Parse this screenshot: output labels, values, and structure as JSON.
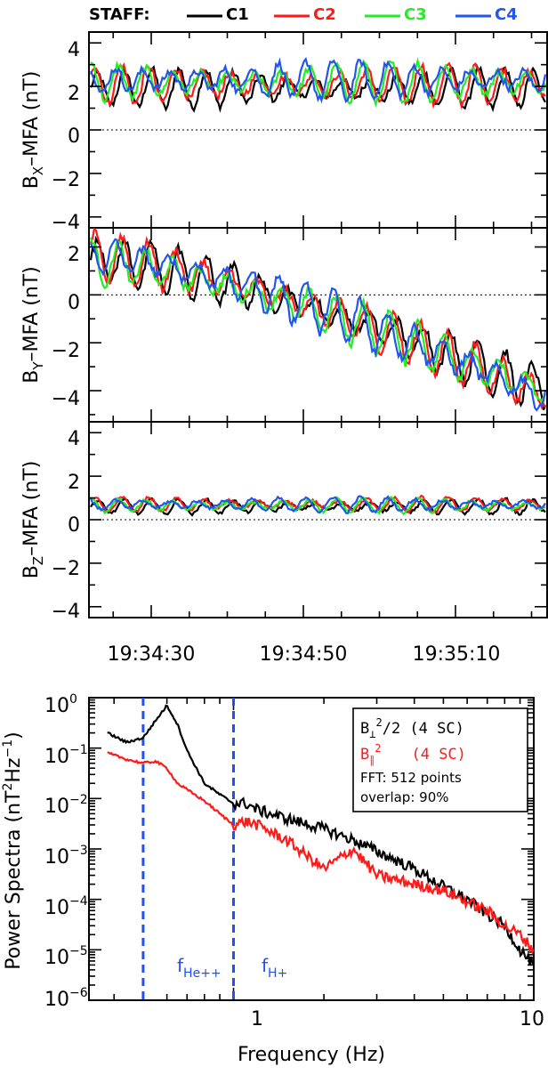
{
  "legend": {
    "prefix": "STAFF:",
    "items": [
      {
        "label": "C1",
        "color": "#000000"
      },
      {
        "label": "C2",
        "color": "#ff1a1a"
      },
      {
        "label": "C3",
        "color": "#22ee22"
      },
      {
        "label": "C4",
        "color": "#2255ee"
      }
    ]
  },
  "time_ticks": [
    "19:34:30",
    "19:34:50",
    "19:35:10"
  ],
  "panels": [
    {
      "ylabel_main": "B",
      "ylabel_sub": "X",
      "ylabel_rest": "–MFA (nT)",
      "yticks": [
        "4",
        "2",
        "0",
        "−2",
        "−4"
      ]
    },
    {
      "ylabel_main": "B",
      "ylabel_sub": "Y",
      "ylabel_rest": "–MFA (nT)",
      "yticks": [
        "2",
        "0",
        "−2",
        "−4"
      ]
    },
    {
      "ylabel_main": "B",
      "ylabel_sub": "Z",
      "ylabel_rest": "–MFA (nT)",
      "yticks": [
        "4",
        "2",
        "0",
        "−2",
        "−4"
      ]
    }
  ],
  "spectrum": {
    "ylabel_main": "Power Spectra (nT",
    "ylabel_sup": "2",
    "ylabel_mid": "Hz",
    "ylabel_sup2": "−1",
    "ylabel_end": ")",
    "xlabel": "Frequency (Hz)",
    "xtick_labels": [
      "1",
      "10"
    ],
    "ytick_labels": [
      {
        "base": "10",
        "exp": "0"
      },
      {
        "base": "10",
        "exp": "−1"
      },
      {
        "base": "10",
        "exp": "−2"
      },
      {
        "base": "10",
        "exp": "−3"
      },
      {
        "base": "10",
        "exp": "−4"
      },
      {
        "base": "10",
        "exp": "−5"
      },
      {
        "base": "10",
        "exp": "−6"
      }
    ],
    "box": {
      "line1_main": "B",
      "line1_sub": "⊥",
      "line1_sup": "2",
      "line1_rest": "/2 (4 SC)",
      "line2_main": "B",
      "line2_sub": "∥",
      "line2_sup": "2",
      "line2_rest": "(4 SC)",
      "line3": "FFT: 512 points",
      "line4": "overlap: 90%"
    },
    "markers": [
      {
        "main": "f",
        "sub": "He++"
      },
      {
        "main": "f",
        "sub": "H+"
      }
    ]
  },
  "chart_data": [
    {
      "type": "line",
      "title": "",
      "xlabel": "",
      "ylabel": "Bx-MFA (nT)",
      "ylim": [
        -4.5,
        4.5
      ],
      "x_time_range": [
        "19:34:18",
        "19:35:22"
      ],
      "series": [
        {
          "name": "C1",
          "color": "#000000",
          "mean": 1.9,
          "amp": 0.9
        },
        {
          "name": "C2",
          "color": "#ff1a1a",
          "mean": 2.1,
          "amp": 0.9
        },
        {
          "name": "C3",
          "color": "#22ee22",
          "mean": 2.2,
          "amp": 0.9
        },
        {
          "name": "C4",
          "color": "#2255ee",
          "mean": 2.3,
          "amp": 0.9
        }
      ]
    },
    {
      "type": "line",
      "title": "",
      "xlabel": "",
      "ylabel": "By-MFA (nT)",
      "ylim": [
        -5.3,
        2.8
      ],
      "x_time_range": [
        "19:34:18",
        "19:35:22"
      ],
      "series": [
        {
          "name": "C1",
          "color": "#000000",
          "start": 1.5,
          "end": -4.0,
          "amp": 1.0
        },
        {
          "name": "C2",
          "color": "#ff1a1a",
          "start": 1.6,
          "end": -4.2,
          "amp": 1.0
        },
        {
          "name": "C3",
          "color": "#22ee22",
          "start": 1.4,
          "end": -4.1,
          "amp": 1.0
        },
        {
          "name": "C4",
          "color": "#2255ee",
          "start": 1.7,
          "end": -4.3,
          "amp": 1.0
        }
      ]
    },
    {
      "type": "line",
      "title": "",
      "xlabel": "",
      "ylabel": "Bz-MFA (nT)",
      "ylim": [
        -4.5,
        4.5
      ],
      "x_time_range": [
        "19:34:18",
        "19:35:22"
      ],
      "series": [
        {
          "name": "C1",
          "color": "#000000",
          "mean": 0.6,
          "amp": 0.35
        },
        {
          "name": "C2",
          "color": "#ff1a1a",
          "mean": 0.7,
          "amp": 0.35
        },
        {
          "name": "C3",
          "color": "#22ee22",
          "mean": 0.65,
          "amp": 0.35
        },
        {
          "name": "C4",
          "color": "#2255ee",
          "mean": 0.7,
          "amp": 0.35
        }
      ]
    },
    {
      "type": "line",
      "title": "",
      "xlabel": "Frequency (Hz)",
      "ylabel": "Power Spectra (nT^2 Hz^-1)",
      "x_scale": "log",
      "y_scale": "log",
      "xlim": [
        0.33,
        10
      ],
      "ylim": [
        1e-06,
        1
      ],
      "vlines": [
        {
          "label": "fHe++",
          "x": 0.5,
          "color": "#1f4fff"
        },
        {
          "label": "fH+",
          "x": 1.0,
          "color": "#1f4fff"
        }
      ],
      "series": [
        {
          "name": "B⊥²/2 (4 SC)",
          "color": "#000000",
          "x": [
            0.38,
            0.44,
            0.5,
            0.55,
            0.6,
            0.65,
            0.7,
            0.8,
            0.9,
            1.0,
            1.1,
            1.2,
            1.5,
            2.0,
            2.5,
            3.0,
            4.0,
            5.0,
            6.0,
            7.0,
            8.0,
            9.0,
            10.0
          ],
          "y": [
            0.2,
            0.13,
            0.16,
            0.35,
            0.7,
            0.3,
            0.09,
            0.02,
            0.012,
            0.008,
            0.008,
            0.006,
            0.004,
            0.0025,
            0.0015,
            0.0009,
            0.0004,
            0.00018,
            0.0001,
            5e-05,
            3e-05,
            1e-05,
            5e-06
          ]
        },
        {
          "name": "B∥² (4 SC)",
          "color": "#ff1a1a",
          "x": [
            0.38,
            0.44,
            0.5,
            0.55,
            0.6,
            0.65,
            0.7,
            0.8,
            0.9,
            1.0,
            1.1,
            1.2,
            1.5,
            2.0,
            2.5,
            3.0,
            4.0,
            5.0,
            6.0,
            7.0,
            8.0,
            9.0,
            10.0
          ],
          "y": [
            0.08,
            0.06,
            0.05,
            0.055,
            0.04,
            0.02,
            0.015,
            0.009,
            0.005,
            0.003,
            0.0035,
            0.003,
            0.0015,
            0.0004,
            0.001,
            0.0003,
            0.0002,
            0.00015,
            9e-05,
            6e-05,
            3e-05,
            2e-05,
            1e-05
          ]
        }
      ]
    }
  ]
}
